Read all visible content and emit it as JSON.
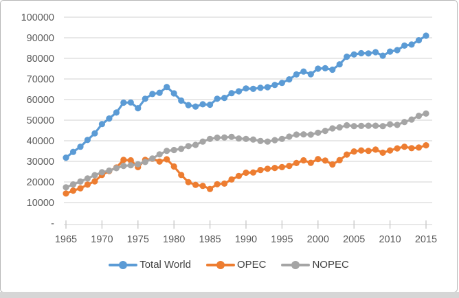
{
  "chart_data": {
    "type": "line",
    "title": "",
    "xlabel": "",
    "ylabel": "",
    "grid": true,
    "legend_position": "bottom",
    "x": [
      1965,
      1966,
      1967,
      1968,
      1969,
      1970,
      1971,
      1972,
      1973,
      1974,
      1975,
      1976,
      1977,
      1978,
      1979,
      1980,
      1981,
      1982,
      1983,
      1984,
      1985,
      1986,
      1987,
      1988,
      1989,
      1990,
      1991,
      1992,
      1993,
      1994,
      1995,
      1996,
      1997,
      1998,
      1999,
      2000,
      2001,
      2002,
      2003,
      2004,
      2005,
      2006,
      2007,
      2008,
      2009,
      2010,
      2011,
      2012,
      2013,
      2014,
      2015
    ],
    "series": [
      {
        "name": "Total World",
        "color": "#5B9BD5",
        "values": [
          31800,
          34600,
          37100,
          40400,
          43600,
          48100,
          50800,
          53700,
          58500,
          58600,
          55800,
          60400,
          62700,
          63300,
          66100,
          63000,
          59500,
          57300,
          56600,
          57700,
          57500,
          60400,
          60800,
          63100,
          64000,
          65400,
          65200,
          65700,
          66000,
          67100,
          68100,
          69800,
          72200,
          73600,
          72300,
          75000,
          75200,
          74500,
          77100,
          80800,
          81900,
          82500,
          82400,
          83000,
          81300,
          83300,
          84000,
          86200,
          86700,
          88800,
          91000
        ]
      },
      {
        "name": "OPEC",
        "color": "#ED7D31",
        "values": [
          14400,
          15800,
          16900,
          18700,
          20300,
          23400,
          25300,
          27000,
          30700,
          30500,
          27200,
          30700,
          31300,
          29900,
          31000,
          27500,
          23400,
          19900,
          18600,
          18100,
          16600,
          18900,
          19200,
          21200,
          22900,
          24500,
          24600,
          25800,
          26400,
          26800,
          27200,
          27800,
          29200,
          30500,
          29300,
          31100,
          30400,
          28500,
          30600,
          33300,
          34800,
          35300,
          35100,
          35700,
          34200,
          35300,
          36300,
          37100,
          36400,
          36700,
          37800
        ]
      },
      {
        "name": "NOPEC",
        "color": "#A5A5A5",
        "values": [
          17400,
          18800,
          20200,
          21700,
          23300,
          24700,
          25500,
          26700,
          27800,
          28100,
          28600,
          29700,
          31400,
          33400,
          35100,
          35500,
          36100,
          37400,
          38000,
          39600,
          40900,
          41500,
          41600,
          41900,
          41100,
          40900,
          40600,
          39900,
          39600,
          40300,
          40900,
          42000,
          43000,
          43100,
          43000,
          43900,
          44800,
          46000,
          46500,
          47500,
          47100,
          47200,
          47300,
          47300,
          47100,
          48000,
          47700,
          49100,
          50300,
          52100,
          53200
        ]
      }
    ],
    "y_axis": {
      "min": 0,
      "max": 100000,
      "step": 10000,
      "tick_labels": [
        "-",
        "10000",
        "20000",
        "30000",
        "40000",
        "50000",
        "60000",
        "70000",
        "80000",
        "90000",
        "100000"
      ]
    },
    "x_axis": {
      "tick_years": [
        1965,
        1970,
        1975,
        1980,
        1985,
        1990,
        1995,
        2000,
        2005,
        2010,
        2015
      ]
    }
  },
  "palette": {
    "gridline": "#D9D9D9",
    "axis_tick": "#C6C6C6",
    "axis_text": "#595959",
    "legend_text": "#404040",
    "card_border": "#B7B7B7",
    "window_edge": "#D6D6D6",
    "background": "#FFFFFF"
  }
}
